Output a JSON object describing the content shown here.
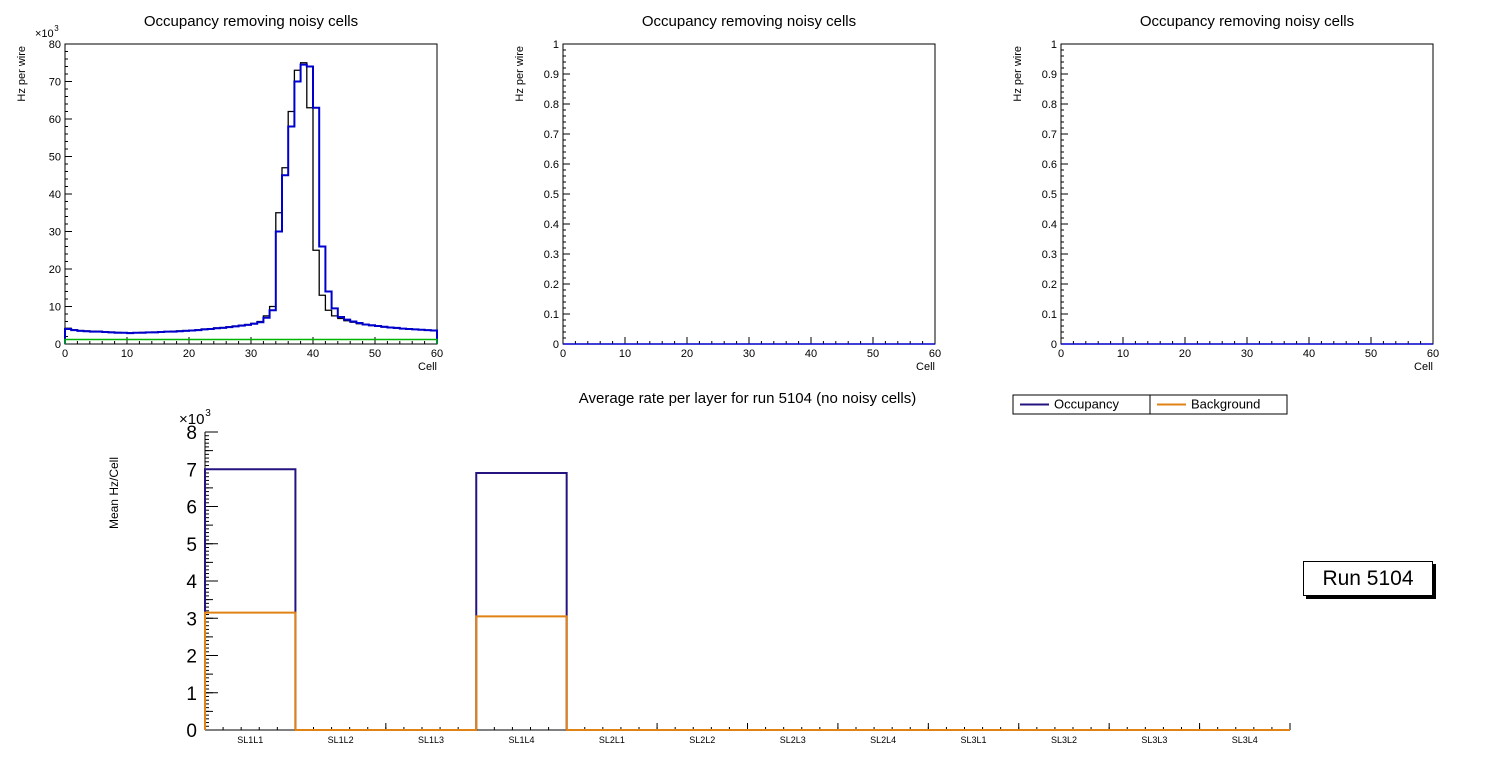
{
  "canvas": {
    "background": "#ffffff"
  },
  "run_label": {
    "text": "Run 5104"
  },
  "chart_data": [
    {
      "name": "occupancy-panel-1",
      "type": "step-histogram",
      "title": "Occupancy removing noisy cells",
      "xlabel": "Cell",
      "ylabel": "Hz per wire",
      "y_scale_label": "×10^3",
      "xlim": [
        0,
        60
      ],
      "ylim": [
        0,
        80
      ],
      "x_major_step": 10,
      "x_minor_step": 2,
      "y_major_step": 10,
      "y_minor_step": 2,
      "n_bins": 60,
      "series": [
        {
          "name": "occupancy-outline",
          "color": "#000000",
          "width": 1.3,
          "values": [
            4.2,
            3.8,
            3.6,
            3.5,
            3.4,
            3.4,
            3.3,
            3.2,
            3.1,
            3.0,
            3.0,
            3.0,
            3.1,
            3.1,
            3.2,
            3.3,
            3.3,
            3.4,
            3.5,
            3.6,
            3.7,
            3.8,
            4.0,
            4.1,
            4.3,
            4.4,
            4.6,
            4.8,
            5.0,
            5.2,
            5.5,
            6.0,
            7.5,
            10.0,
            35.0,
            47.0,
            62.0,
            73.0,
            75.0,
            63.0,
            25.0,
            13.0,
            9.0,
            7.5,
            6.8,
            6.2,
            5.8,
            5.4,
            5.1,
            4.9,
            4.7,
            4.5,
            4.3,
            4.2,
            4.1,
            4.0,
            3.9,
            3.8,
            3.7,
            3.6
          ]
        },
        {
          "name": "occupancy-no-noise",
          "color": "#0000cc",
          "width": 2,
          "values": [
            4.0,
            3.7,
            3.5,
            3.4,
            3.3,
            3.3,
            3.2,
            3.1,
            3.0,
            3.0,
            2.9,
            3.0,
            3.0,
            3.1,
            3.1,
            3.2,
            3.3,
            3.3,
            3.4,
            3.5,
            3.6,
            3.7,
            3.9,
            4.0,
            4.2,
            4.3,
            4.5,
            4.7,
            4.9,
            5.1,
            5.4,
            5.8,
            7.0,
            9.0,
            30.0,
            45.0,
            58.0,
            70.0,
            74.5,
            74.0,
            63.0,
            26.0,
            14.0,
            9.5,
            7.2,
            6.5,
            6.0,
            5.6,
            5.2,
            5.0,
            4.8,
            4.6,
            4.4,
            4.3,
            4.1,
            4.0,
            3.9,
            3.8,
            3.7,
            3.6
          ]
        },
        {
          "name": "background-baseline",
          "color": "#00b400",
          "width": 1.5,
          "flat_value": 1.2
        }
      ]
    },
    {
      "name": "occupancy-panel-2",
      "type": "step-histogram",
      "title": "Occupancy removing noisy cells",
      "xlabel": "Cell",
      "ylabel": "Hz per wire",
      "xlim": [
        0,
        60
      ],
      "ylim": [
        0,
        1
      ],
      "x_major_step": 10,
      "x_minor_step": 2,
      "y_major_step": 0.1,
      "y_minor_step": 0.02,
      "n_bins": 60,
      "series": [
        {
          "name": "empty-histogram",
          "color": "#0000cc",
          "width": 1.5,
          "flat_value": 0
        }
      ]
    },
    {
      "name": "occupancy-panel-3",
      "type": "step-histogram",
      "title": "Occupancy removing noisy cells",
      "xlabel": "Cell",
      "ylabel": "Hz per wire",
      "xlim": [
        0,
        60
      ],
      "ylim": [
        0,
        1
      ],
      "x_major_step": 10,
      "x_minor_step": 2,
      "y_major_step": 0.1,
      "y_minor_step": 0.02,
      "n_bins": 60,
      "series": [
        {
          "name": "empty-histogram",
          "color": "#0000cc",
          "width": 1.5,
          "flat_value": 0
        }
      ]
    },
    {
      "name": "average-rate-per-layer",
      "type": "category-step",
      "title": "Average rate per layer for run 5104 (no noisy cells)",
      "ylabel": "Mean Hz/Cell",
      "y_scale_label": "×10^3",
      "ylim": [
        0,
        8
      ],
      "y_major_step": 1,
      "y_mid_step": 0.5,
      "y_minor_step": 0.1,
      "categories": [
        "SL1L1",
        "SL1L2",
        "SL1L3",
        "SL1L4",
        "SL2L1",
        "SL2L2",
        "SL2L3",
        "SL2L4",
        "SL3L1",
        "SL3L2",
        "SL3L3",
        "SL3L4"
      ],
      "series": [
        {
          "name": "Occupancy",
          "color": "#261380",
          "width": 2,
          "values": [
            7.0,
            0,
            0,
            6.9,
            0,
            0,
            0,
            0,
            0,
            0,
            0,
            0
          ]
        },
        {
          "name": "Background",
          "color": "#e08214",
          "width": 2,
          "values": [
            3.15,
            0,
            0,
            3.05,
            0,
            0,
            0,
            0,
            0,
            0,
            0,
            0
          ]
        }
      ],
      "legend": {
        "entries": [
          {
            "label": "Occupancy",
            "color": "#261380"
          },
          {
            "label": "Background",
            "color": "#e08214"
          }
        ]
      }
    }
  ]
}
